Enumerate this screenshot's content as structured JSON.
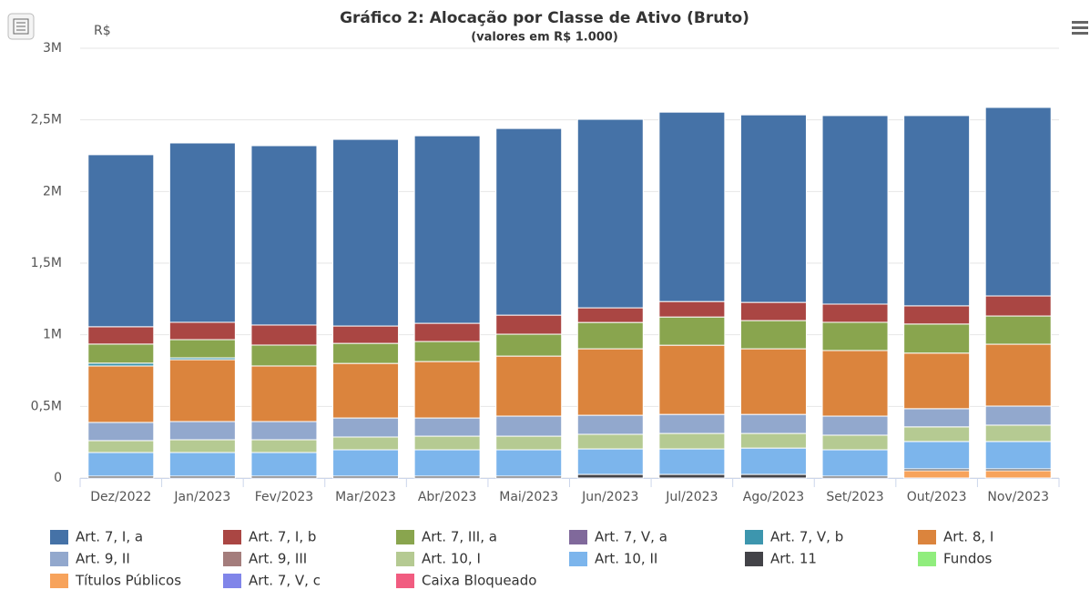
{
  "chart_data": {
    "type": "bar",
    "stacked": true,
    "title": "Gráfico 2: Alocação por Classe de Ativo (Bruto)",
    "subtitle": "(valores em R$ 1.000)",
    "y_label": "R$",
    "categories": [
      "Dez/2022",
      "Jan/2023",
      "Fev/2023",
      "Mar/2023",
      "Abr/2023",
      "Mai/2023",
      "Jun/2023",
      "Jul/2023",
      "Ago/2023",
      "Set/2023",
      "Out/2023",
      "Nov/2023"
    ],
    "ylim": [
      0,
      3000000
    ],
    "yticks": [
      0,
      {
        "value": 500000,
        "label": "0,5M"
      },
      {
        "value": 1000000,
        "label": "1M"
      },
      {
        "value": 1500000,
        "label": "1,5M"
      },
      {
        "value": 2000000,
        "label": "2M"
      },
      {
        "value": 2500000,
        "label": "2,5M"
      },
      {
        "value": 3000000,
        "label": "3M"
      }
    ],
    "grid": true,
    "legend": "bottom",
    "series": [
      {
        "name": "Art. 7, I, a",
        "color": "#4572a7",
        "values": [
          1201000,
          1252000,
          1252000,
          1303000,
          1309000,
          1303000,
          1316000,
          1322000,
          1309000,
          1316000,
          1328000,
          1316000
        ]
      },
      {
        "name": "Art. 7, I, b",
        "color": "#aa4643",
        "values": [
          121000,
          121000,
          140000,
          121000,
          127000,
          133000,
          102000,
          108000,
          127000,
          127000,
          127000,
          140000
        ]
      },
      {
        "name": "Art. 7, III, a",
        "color": "#89a54e",
        "values": [
          133000,
          127000,
          146000,
          140000,
          140000,
          153000,
          184000,
          197000,
          197000,
          197000,
          203000,
          197000
        ]
      },
      {
        "name": "Art. 7, V, a",
        "color": "#80699b",
        "values": [
          0,
          0,
          0,
          0,
          0,
          0,
          0,
          0,
          0,
          0,
          0,
          0
        ]
      },
      {
        "name": "Art. 7, V, b",
        "color": "#3d96ae",
        "values": [
          20000,
          13000,
          0,
          0,
          0,
          0,
          0,
          0,
          0,
          0,
          0,
          0
        ]
      },
      {
        "name": "Art. 8, I",
        "color": "#db843d",
        "values": [
          394000,
          432000,
          388000,
          381000,
          394000,
          419000,
          464000,
          483000,
          458000,
          458000,
          388000,
          432000
        ]
      },
      {
        "name": "Art. 9, II",
        "color": "#92a8cd",
        "values": [
          127000,
          127000,
          127000,
          133000,
          127000,
          140000,
          133000,
          133000,
          133000,
          133000,
          127000,
          133000
        ]
      },
      {
        "name": "Art. 9, III",
        "color": "#a47d7c",
        "values": [
          0,
          0,
          0,
          0,
          0,
          0,
          0,
          0,
          0,
          0,
          0,
          0
        ]
      },
      {
        "name": "Art. 10, I",
        "color": "#b5ca92",
        "values": [
          83000,
          89000,
          89000,
          89000,
          95000,
          95000,
          102000,
          108000,
          102000,
          102000,
          102000,
          114000
        ]
      },
      {
        "name": "Art. 10, II",
        "color": "#7cb5ec",
        "values": [
          165000,
          165000,
          165000,
          184000,
          184000,
          184000,
          178000,
          178000,
          184000,
          184000,
          191000,
          191000
        ]
      },
      {
        "name": "Art. 11",
        "color": "#434348",
        "values": [
          13000,
          13000,
          13000,
          13000,
          13000,
          13000,
          25000,
          25000,
          25000,
          13000,
          13000,
          13000
        ]
      },
      {
        "name": "Fundos",
        "color": "#90ed7d",
        "values": [
          0,
          0,
          0,
          0,
          0,
          0,
          0,
          0,
          0,
          0,
          0,
          0
        ]
      },
      {
        "name": "Títulos Públicos",
        "color": "#f7a35c",
        "values": [
          0,
          0,
          0,
          0,
          0,
          0,
          0,
          0,
          0,
          0,
          51000,
          51000
        ]
      },
      {
        "name": "Art. 7, V, c",
        "color": "#8085e9",
        "values": [
          0,
          0,
          0,
          0,
          0,
          0,
          0,
          0,
          0,
          0,
          0,
          0
        ]
      },
      {
        "name": "Caixa Bloqueado",
        "color": "#f15c80",
        "values": [
          0,
          0,
          0,
          0,
          0,
          0,
          0,
          0,
          0,
          0,
          0,
          0
        ]
      }
    ]
  }
}
